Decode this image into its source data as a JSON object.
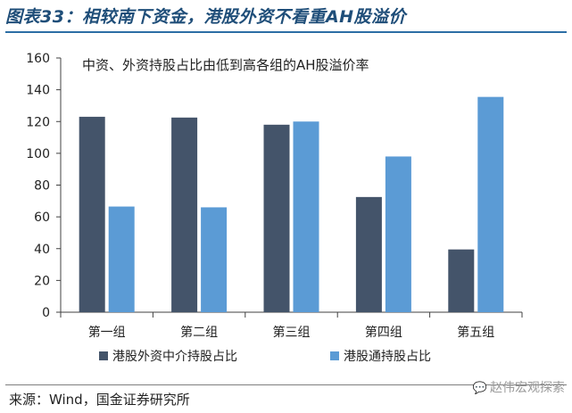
{
  "figure": {
    "title": "图表33：相较南下资金，港股外资不看重AH股溢价",
    "source": "来源：Wind，国金证券研究所",
    "watermark": "赵伟宏观探索",
    "watermark_icon": "wechat-icon"
  },
  "chart_data": {
    "type": "bar",
    "title": "中资、外资持股占比由低到高各组的AH股溢价率",
    "categories": [
      "第一组",
      "第二组",
      "第三组",
      "第四组",
      "第五组"
    ],
    "series": [
      {
        "name": "港股外资中介持股占比",
        "color": "#44546a",
        "values": [
          123,
          122.5,
          118,
          72.5,
          39.5
        ]
      },
      {
        "name": "港股通持股占比",
        "color": "#5b9bd5",
        "values": [
          66.5,
          66,
          120,
          98,
          135.5
        ]
      }
    ],
    "ylim": [
      0,
      160
    ],
    "yticks": [
      0,
      20,
      40,
      60,
      80,
      100,
      120,
      140,
      160
    ],
    "xlabel": "",
    "ylabel": "",
    "grid": false,
    "legend": "bottom"
  }
}
